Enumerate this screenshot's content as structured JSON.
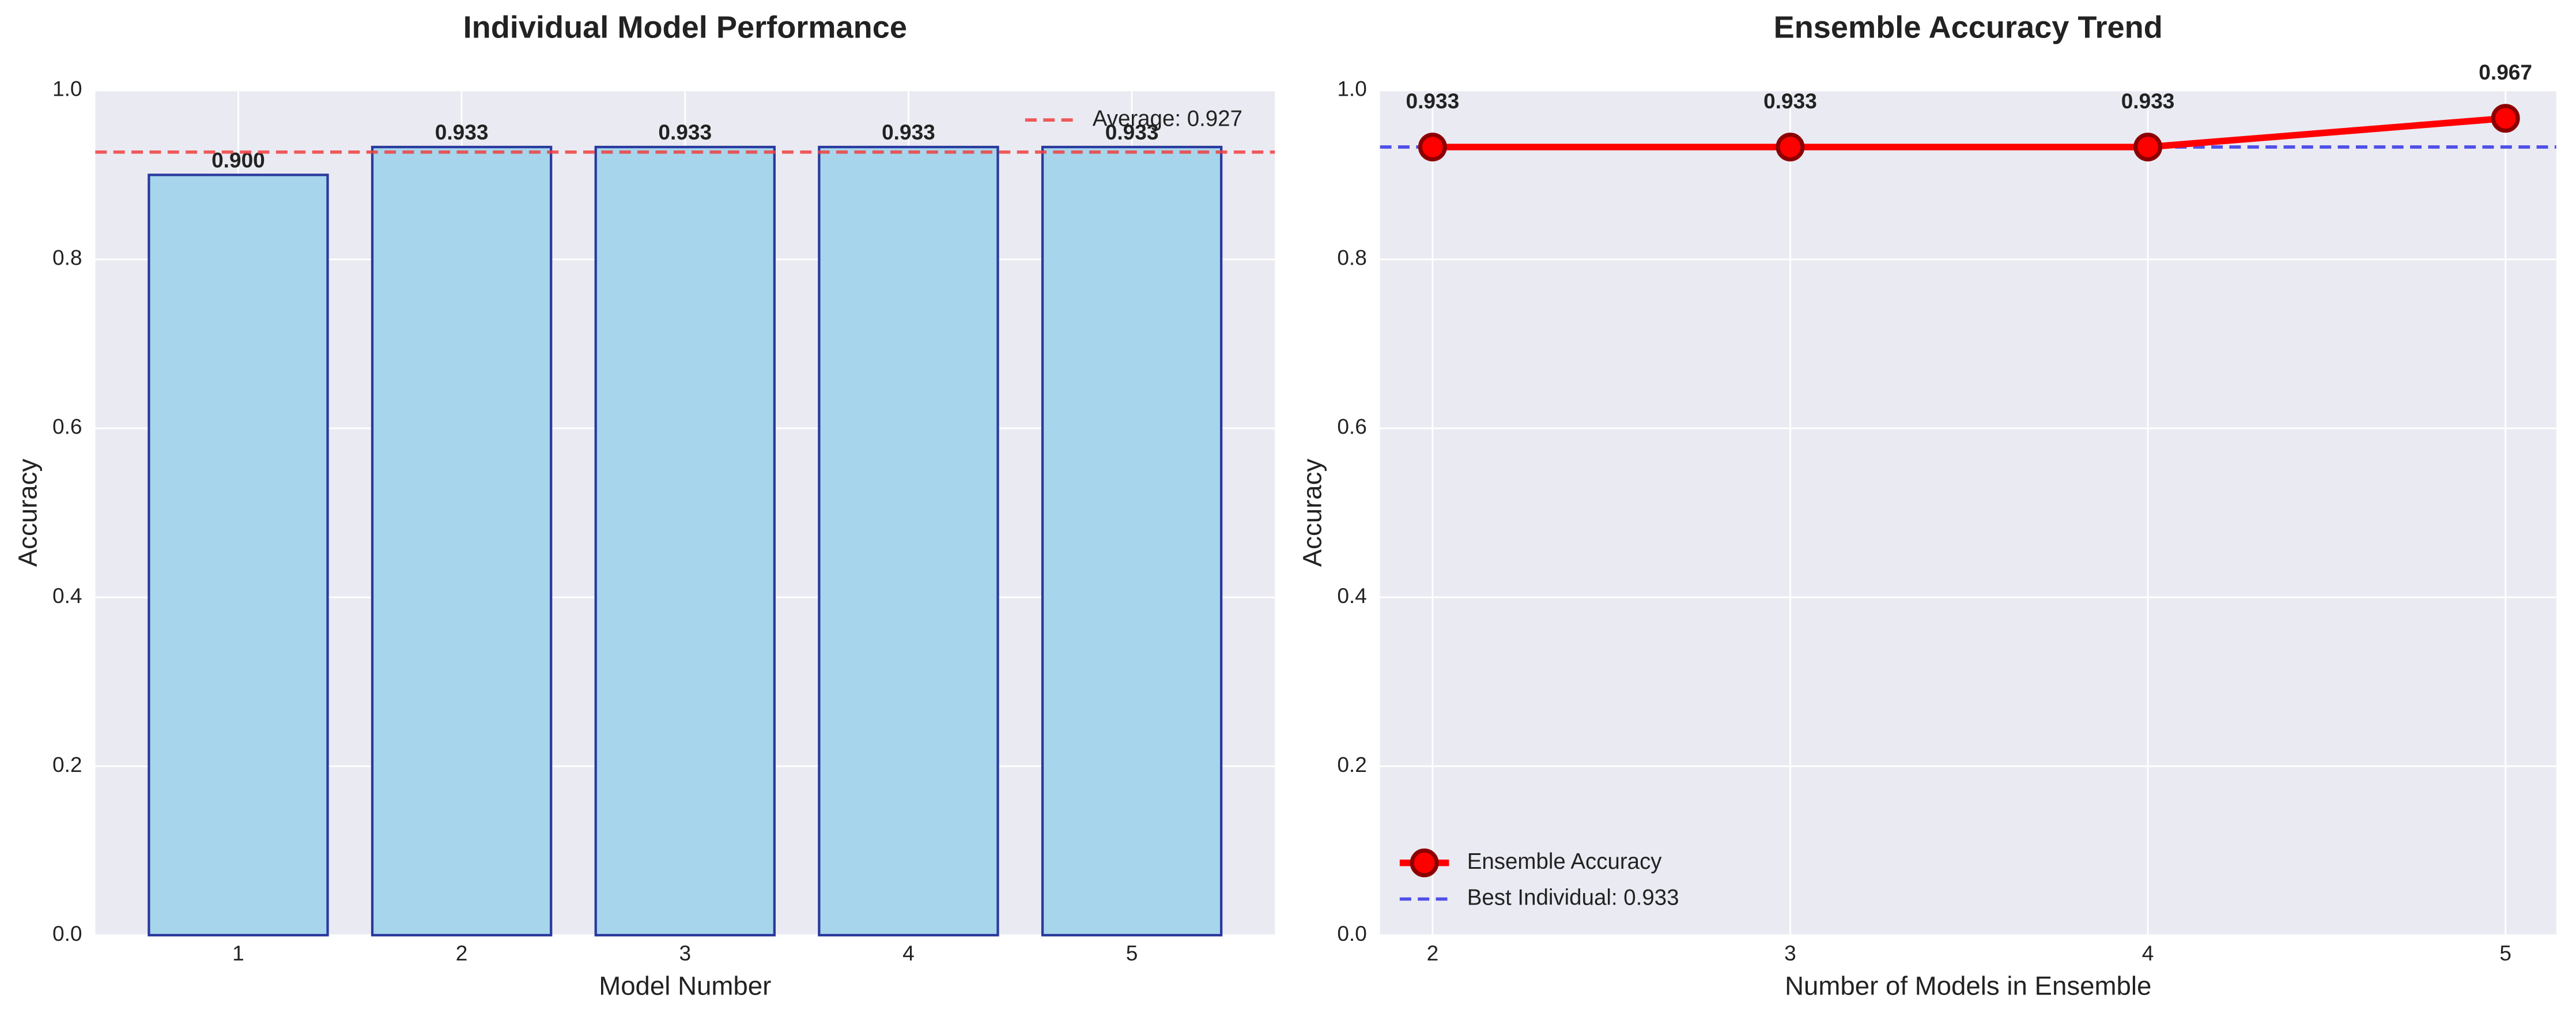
{
  "chart_data": [
    {
      "type": "bar",
      "title": "Individual Model Performance",
      "xlabel": "Model Number",
      "ylabel": "Accuracy",
      "categories": [
        "1",
        "2",
        "3",
        "4",
        "5"
      ],
      "values": [
        0.9,
        0.933,
        0.933,
        0.933,
        0.933
      ],
      "value_labels": [
        "0.900",
        "0.933",
        "0.933",
        "0.933",
        "0.933"
      ],
      "color": "#a6d5ec",
      "edge_color": "#2a3a9e",
      "ylim": [
        0,
        1
      ],
      "yticks": [
        {
          "value": 0,
          "label": "0.0"
        },
        0.2,
        0.4,
        0.6,
        0.8,
        {
          "value": 1,
          "label": "1.0"
        }
      ],
      "reference_lines": [
        {
          "name": "Average: 0.927",
          "value": 0.927,
          "color": "#f04040"
        }
      ],
      "grid": true,
      "legend": "upper right"
    },
    {
      "type": "line",
      "title": "Ensemble Accuracy Trend",
      "xlabel": "Number of Models in Ensemble",
      "ylabel": "Accuracy",
      "x": [
        2,
        3,
        4,
        5
      ],
      "series": [
        {
          "name": "Ensemble Accuracy",
          "color": "#ff0000",
          "marker_edge": "#8b0000",
          "values": [
            0.933,
            0.933,
            0.933,
            0.967
          ],
          "value_labels": [
            "0.933",
            "0.933",
            "0.933",
            "0.967"
          ]
        }
      ],
      "xlim": [
        1.853,
        5.142
      ],
      "xticks": [
        2,
        3,
        4,
        5
      ],
      "ylim": [
        0,
        1
      ],
      "yticks": [
        {
          "value": 0,
          "label": "0.0"
        },
        0.2,
        0.4,
        0.6,
        0.8,
        {
          "value": 1,
          "label": "1.0"
        }
      ],
      "reference_lines": [
        {
          "name": "Best Individual: 0.933",
          "value": 0.933,
          "color": "#3535e8"
        }
      ],
      "grid": true,
      "legend": "lower left"
    }
  ]
}
